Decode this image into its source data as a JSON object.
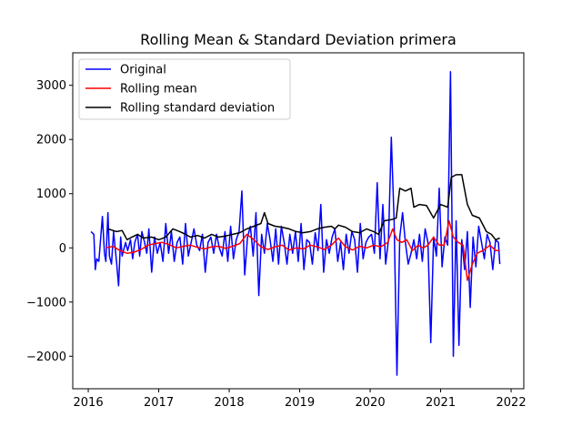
{
  "chart_data": {
    "type": "line",
    "title": "Rolling Mean & Standard Deviation primera",
    "xlabel": "",
    "ylabel": "",
    "xlim": [
      2015.78,
      2022.18
    ],
    "ylim": [
      -2600,
      3600
    ],
    "xticks": [
      2016,
      2017,
      2018,
      2019,
      2020,
      2021,
      2022
    ],
    "yticks": [
      -2000,
      -1000,
      0,
      1000,
      2000,
      3000
    ],
    "grid": false,
    "legend": "top-left",
    "series": [
      {
        "name": "Original",
        "color": "#0000ff",
        "x": [
          2016.04,
          2016.08,
          2016.1,
          2016.12,
          2016.15,
          2016.2,
          2016.23,
          2016.25,
          2016.28,
          2016.3,
          2016.33,
          2016.36,
          2016.4,
          2016.43,
          2016.46,
          2016.48,
          2016.5,
          2016.53,
          2016.56,
          2016.6,
          2016.63,
          2016.66,
          2016.7,
          2016.73,
          2016.76,
          2016.8,
          2016.83,
          2016.86,
          2016.9,
          2016.94,
          2016.98,
          2017.02,
          2017.06,
          2017.1,
          2017.14,
          2017.18,
          2017.22,
          2017.26,
          2017.3,
          2017.34,
          2017.38,
          2017.42,
          2017.46,
          2017.5,
          2017.54,
          2017.58,
          2017.62,
          2017.66,
          2017.7,
          2017.74,
          2017.78,
          2017.82,
          2017.86,
          2017.9,
          2017.94,
          2017.98,
          2018.02,
          2018.06,
          2018.1,
          2018.14,
          2018.18,
          2018.22,
          2018.26,
          2018.3,
          2018.34,
          2018.38,
          2018.42,
          2018.46,
          2018.5,
          2018.54,
          2018.58,
          2018.62,
          2018.66,
          2018.7,
          2018.74,
          2018.78,
          2018.82,
          2018.86,
          2018.9,
          2018.94,
          2018.98,
          2019.02,
          2019.06,
          2019.1,
          2019.14,
          2019.18,
          2019.22,
          2019.26,
          2019.3,
          2019.34,
          2019.38,
          2019.42,
          2019.46,
          2019.5,
          2019.54,
          2019.58,
          2019.62,
          2019.66,
          2019.7,
          2019.74,
          2019.78,
          2019.82,
          2019.86,
          2019.9,
          2019.94,
          2019.98,
          2020.02,
          2020.06,
          2020.1,
          2020.14,
          2020.18,
          2020.22,
          2020.26,
          2020.3,
          2020.34,
          2020.38,
          2020.42,
          2020.46,
          2020.5,
          2020.54,
          2020.58,
          2020.62,
          2020.66,
          2020.7,
          2020.74,
          2020.78,
          2020.82,
          2020.86,
          2020.9,
          2020.94,
          2020.98,
          2021.02,
          2021.06,
          2021.1,
          2021.14,
          2021.18,
          2021.22,
          2021.26,
          2021.3,
          2021.34,
          2021.38,
          2021.42,
          2021.46,
          2021.5,
          2021.54,
          2021.58,
          2021.62,
          2021.66,
          2021.7,
          2021.74,
          2021.78,
          2021.82,
          2021.84
        ],
        "y": [
          300,
          250,
          -400,
          -200,
          -250,
          580,
          -100,
          -250,
          650,
          -150,
          -300,
          300,
          -250,
          -700,
          200,
          -150,
          -50,
          100,
          -50,
          150,
          -200,
          100,
          250,
          -150,
          300,
          100,
          -100,
          350,
          -450,
          200,
          -100,
          100,
          -250,
          450,
          -100,
          300,
          -250,
          100,
          200,
          -300,
          450,
          -150,
          100,
          350,
          50,
          -50,
          250,
          -450,
          100,
          200,
          -100,
          250,
          0,
          -150,
          300,
          -250,
          400,
          -200,
          150,
          300,
          1050,
          -500,
          200,
          400,
          -150,
          650,
          -880,
          250,
          -100,
          450,
          150,
          -250,
          350,
          -300,
          400,
          100,
          -300,
          250,
          -100,
          300,
          -250,
          450,
          -400,
          150,
          100,
          -300,
          280,
          -50,
          800,
          -450,
          150,
          -100,
          200,
          350,
          -250,
          100,
          -400,
          250,
          -100,
          300,
          150,
          -450,
          450,
          -200,
          100,
          200,
          250,
          -100,
          1200,
          -200,
          800,
          -300,
          150,
          2040,
          500,
          -2350,
          200,
          650,
          100,
          -300,
          -100,
          150,
          -200,
          250,
          -250,
          350,
          100,
          -1750,
          200,
          -150,
          1100,
          -350,
          200,
          50,
          3250,
          -2000,
          500,
          -1800,
          150,
          -400,
          300,
          -1100,
          200,
          -350,
          400,
          100,
          -200,
          250,
          100,
          -400,
          150,
          100,
          -300
        ]
      },
      {
        "name": "Rolling mean",
        "color": "#ff0000",
        "x": [
          2016.25,
          2016.35,
          2016.45,
          2016.55,
          2016.65,
          2016.75,
          2016.85,
          2016.95,
          2017.05,
          2017.15,
          2017.25,
          2017.35,
          2017.45,
          2017.55,
          2017.65,
          2017.75,
          2017.85,
          2017.95,
          2018.05,
          2018.15,
          2018.25,
          2018.35,
          2018.45,
          2018.55,
          2018.65,
          2018.75,
          2018.85,
          2018.95,
          2019.05,
          2019.15,
          2019.25,
          2019.35,
          2019.45,
          2019.55,
          2019.65,
          2019.75,
          2019.85,
          2019.95,
          2020.05,
          2020.15,
          2020.25,
          2020.32,
          2020.38,
          2020.45,
          2020.52,
          2020.6,
          2020.68,
          2020.75,
          2020.82,
          2020.9,
          2020.98,
          2021.05,
          2021.12,
          2021.18,
          2021.25,
          2021.32,
          2021.38,
          2021.45,
          2021.52,
          2021.6,
          2021.7,
          2021.78,
          2021.84
        ],
        "y": [
          0,
          30,
          -50,
          -100,
          -80,
          -30,
          50,
          80,
          100,
          60,
          0,
          30,
          50,
          10,
          -20,
          20,
          30,
          -10,
          30,
          80,
          250,
          150,
          20,
          -30,
          20,
          50,
          -40,
          0,
          -20,
          50,
          20,
          -30,
          50,
          180,
          20,
          -40,
          30,
          0,
          50,
          20,
          100,
          350,
          150,
          100,
          150,
          -50,
          50,
          0,
          50,
          200,
          50,
          50,
          500,
          200,
          100,
          50,
          -600,
          -300,
          -100,
          -50,
          50,
          -50,
          -50
        ]
      },
      {
        "name": "Rolling standard deviation",
        "color": "#000000",
        "x": [
          2016.28,
          2016.4,
          2016.48,
          2016.55,
          2016.62,
          2016.7,
          2016.78,
          2016.9,
          2017.0,
          2017.1,
          2017.2,
          2017.3,
          2017.38,
          2017.45,
          2017.55,
          2017.65,
          2017.75,
          2017.85,
          2017.95,
          2018.05,
          2018.15,
          2018.25,
          2018.35,
          2018.45,
          2018.5,
          2018.55,
          2018.65,
          2018.75,
          2018.85,
          2018.95,
          2019.05,
          2019.15,
          2019.25,
          2019.35,
          2019.45,
          2019.5,
          2019.55,
          2019.65,
          2019.75,
          2019.85,
          2019.95,
          2020.05,
          2020.12,
          2020.2,
          2020.3,
          2020.37,
          2020.42,
          2020.5,
          2020.58,
          2020.62,
          2020.7,
          2020.8,
          2020.9,
          2021.0,
          2021.1,
          2021.15,
          2021.22,
          2021.3,
          2021.38,
          2021.45,
          2021.55,
          2021.65,
          2021.72,
          2021.78,
          2021.84
        ],
        "y": [
          350,
          300,
          320,
          150,
          200,
          250,
          180,
          200,
          150,
          200,
          350,
          300,
          250,
          200,
          230,
          180,
          250,
          200,
          220,
          250,
          280,
          350,
          400,
          450,
          650,
          450,
          400,
          380,
          350,
          300,
          280,
          300,
          350,
          380,
          400,
          350,
          420,
          380,
          300,
          280,
          350,
          300,
          250,
          500,
          520,
          550,
          1100,
          1050,
          1100,
          750,
          800,
          780,
          550,
          800,
          750,
          1300,
          1350,
          1350,
          800,
          600,
          550,
          300,
          250,
          150,
          180
        ]
      }
    ]
  }
}
